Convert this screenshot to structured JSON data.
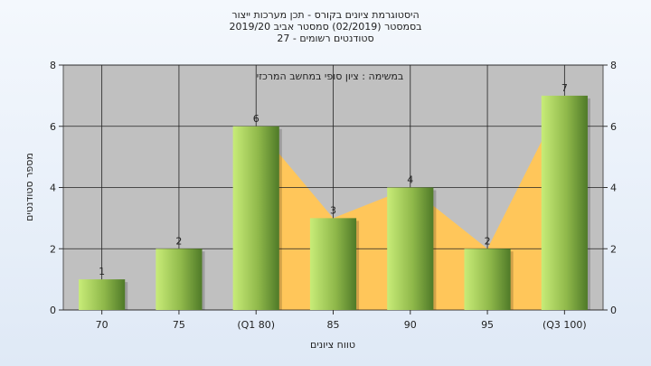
{
  "chart_data": {
    "type": "bar",
    "title_lines": [
      "היסטוגרמת ציונים בקורס - תכן מערכות ייצור",
      "בסמסטר  (02/2019)  סמסטר אביב 2019/20",
      "סטודנטים רשומים - 27"
    ],
    "annotation": "במשימה : ציון סופי במחשב המרכזי",
    "xlabel": "טווח ציונים",
    "ylabel": "מספר סטודנטים",
    "categories": [
      "70",
      "75",
      "(Q1 80)",
      "85",
      "90",
      "95",
      "(Q3 100)"
    ],
    "values": [
      1,
      2,
      6,
      3,
      4,
      2,
      7
    ],
    "value_labels": [
      "1",
      "2",
      "6",
      "3",
      "4",
      "2",
      "7"
    ],
    "ylim": [
      0,
      8
    ],
    "yticks": [
      "0",
      "2",
      "4",
      "6",
      "8"
    ],
    "grid": true,
    "colors": {
      "plot_bg": "#c0c0c0",
      "quartile_area": "#ffc65a",
      "bar_light": "#c8ec78",
      "bar_mid": "#8fb84a",
      "bar_dark": "#4f7a28"
    }
  }
}
